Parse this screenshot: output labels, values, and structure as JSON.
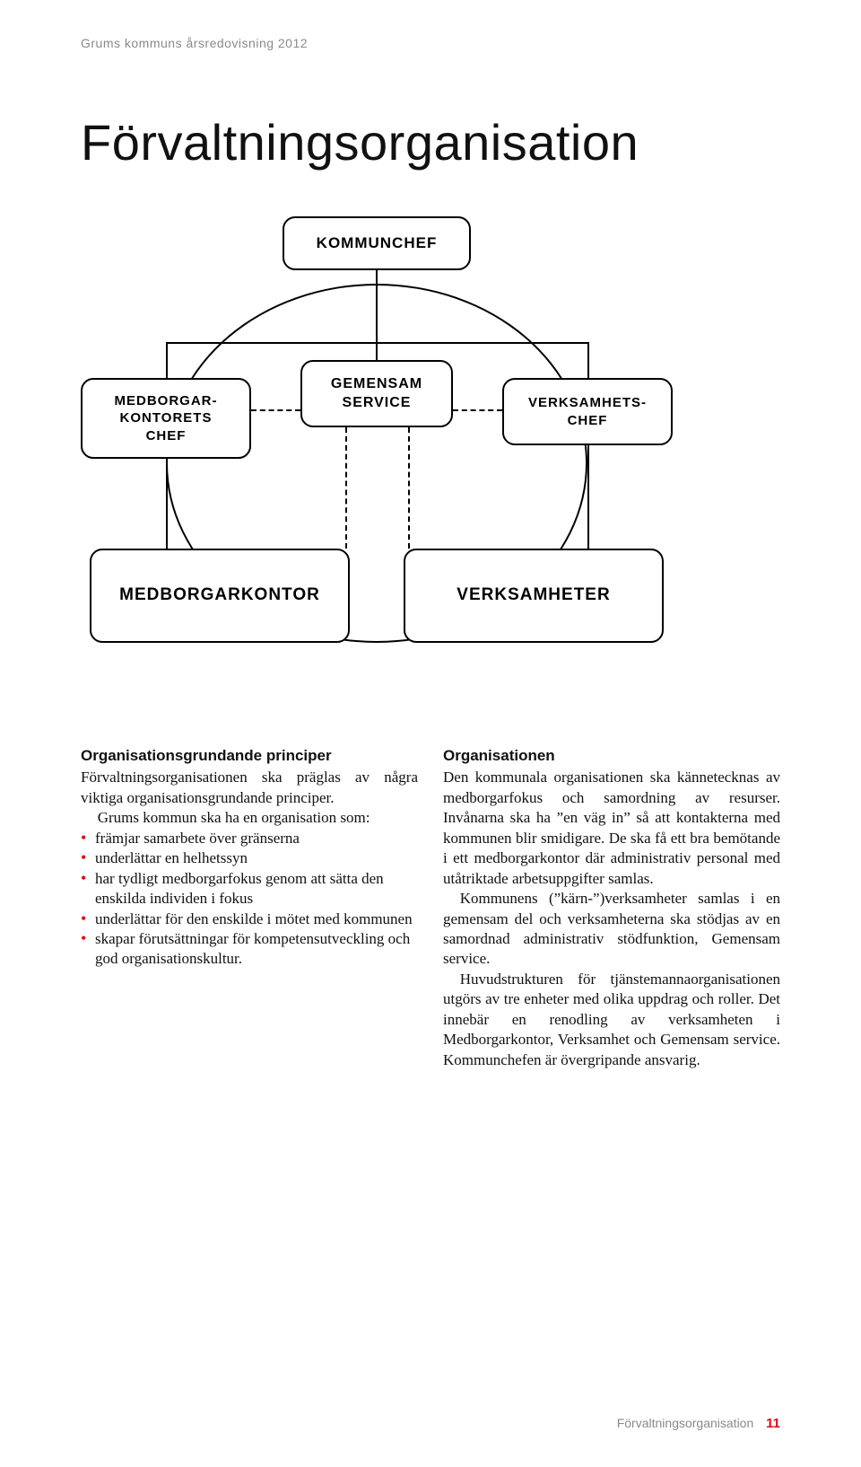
{
  "header": {
    "text": "Grums kommuns årsredovisning 2012"
  },
  "title": "Förvaltningsorganisation",
  "diagram": {
    "boxes": {
      "top": "KOMMUNCHEF",
      "mid_c": "GEMENSAM\nSERVICE",
      "mid_l": "MEDBORGAR-\nKONTORETS\nCHEF",
      "mid_r": "VERKSAMHETS-\nCHEF",
      "bot_l": "MEDBORGARKONTOR",
      "bot_r": "VERKSAMHETER"
    },
    "colors": {
      "border": "#000000",
      "background": "#ffffff",
      "dashed": "#000000"
    }
  },
  "left_col": {
    "heading": "Organisationsgrundande principer",
    "intro": "Förvaltningsorganisationen ska präglas av några viktiga organisationsgrundande principer.",
    "lead": "Grums kommun ska ha en organisation som:",
    "bullets": [
      "främjar samarbete över gränserna",
      "underlättar en helhetssyn",
      "har tydligt medborgarfokus genom att sätta den enskilda individen i fokus",
      "underlättar för den enskilde i mötet med kommunen",
      "skapar förutsättningar för kompetens­utveckling och god organisationskultur."
    ]
  },
  "right_col": {
    "heading": "Organisationen",
    "p1": "Den kommunala organisationen ska känne­tecknas av medborgarfokus och samordning av resurser. Invånarna ska ha ”en väg in” så att kontakterna med kommunen blir smidigare. De ska få ett bra bemötande i ett medborgarkontor där administrativ personal med utåtriktade arbetsuppgifter samlas.",
    "p2": "Kommunens (”kärn-”)verksamheter samlas i en gemensam del och verksamheterna ska stödjas av en samordnad administrativ stöd­funktion, Gemensam service.",
    "p3": "Huvudstrukturen för tjänstemannaorga­nisationen utgörs av tre enheter med olika uppdrag och roller. Det innebär en renodling av verksamheten i Medborgarkontor, Verksam­het och Gemensam service. Kommunchefen är övergripande ansvarig."
  },
  "footer": {
    "section": "Förvaltningsorganisation",
    "page": "11"
  },
  "colors": {
    "accent": "#e30613",
    "muted": "#8a8a8a",
    "text": "#000000"
  }
}
